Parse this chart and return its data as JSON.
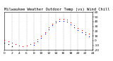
{
  "title": "Milwaukee Weather Outdoor Temp (vs) Wind Chill (Last 24 Hours)",
  "bg_color": "#ffffff",
  "grid_color": "#888888",
  "temp_color": "#dd0000",
  "chill_color": "#0000cc",
  "black_color": "#000000",
  "ylim": [
    -20,
    60
  ],
  "ytick_labels": [
    "60",
    "50",
    "40",
    "30",
    "20",
    "10",
    "0",
    "-10",
    "-20"
  ],
  "ytick_vals": [
    60,
    50,
    40,
    30,
    20,
    10,
    0,
    -10,
    -20
  ],
  "temp_values": [
    2,
    -2,
    -5,
    -8,
    -10,
    -12,
    -11,
    -8,
    -4,
    3,
    10,
    18,
    28,
    36,
    42,
    46,
    46,
    44,
    38,
    32,
    26,
    22,
    18,
    14,
    10
  ],
  "chill_values": [
    null,
    null,
    null,
    null,
    null,
    null,
    null,
    null,
    -9,
    -2,
    5,
    14,
    23,
    32,
    38,
    42,
    42,
    40,
    34,
    28,
    22,
    18,
    13,
    9,
    null
  ],
  "black_values": [
    -5,
    -8,
    -12,
    null,
    null,
    null,
    null,
    null,
    null,
    null,
    null,
    null,
    null,
    null,
    null,
    null,
    null,
    null,
    null,
    null,
    null,
    null,
    null,
    null,
    null
  ],
  "x_values": [
    0,
    1,
    2,
    3,
    4,
    5,
    6,
    7,
    8,
    9,
    10,
    11,
    12,
    13,
    14,
    15,
    16,
    17,
    18,
    19,
    20,
    21,
    22,
    23,
    24
  ],
  "vgrid_positions": [
    2,
    4,
    6,
    8,
    10,
    12,
    14,
    16,
    18,
    20,
    22,
    24
  ],
  "title_fontsize": 4.0,
  "tick_fontsize": 3.2,
  "ylabel_fontsize": 3.2,
  "figwidth": 1.6,
  "figheight": 0.87,
  "dpi": 100
}
